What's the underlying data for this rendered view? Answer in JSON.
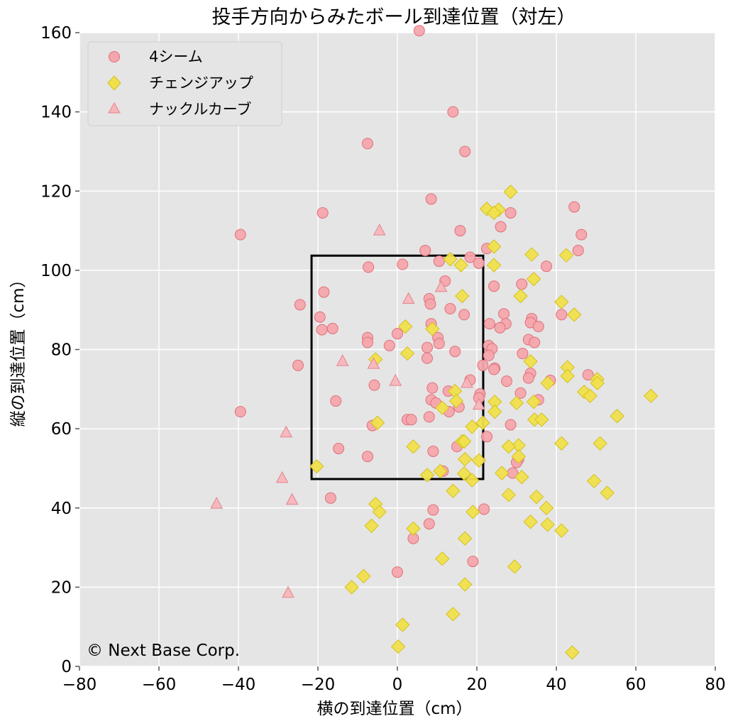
{
  "chart_data": {
    "type": "scatter",
    "title": "投手方向からみたボール到達位置（対左）",
    "xlabel": "横の到達位置（cm）",
    "ylabel": "縦の到達位置（cm）",
    "xlim": [
      -80,
      80
    ],
    "ylim": [
      0,
      160
    ],
    "xticks": [
      -80,
      -60,
      -40,
      -20,
      0,
      20,
      40,
      60,
      80
    ],
    "yticks": [
      0,
      20,
      40,
      60,
      80,
      100,
      120,
      140,
      160
    ],
    "xtick_labels": [
      "−80",
      "−60",
      "−40",
      "−20",
      "0",
      "20",
      "40",
      "60",
      "80"
    ],
    "ytick_labels": [
      "0",
      "20",
      "40",
      "60",
      "80",
      "100",
      "120",
      "140",
      "160"
    ],
    "grid": true,
    "background": "#e5e5e5",
    "legend_position": "top-left",
    "strike_zone": {
      "x": [
        -21.6,
        21.6
      ],
      "y": [
        47.3,
        103.7
      ],
      "color": "#000000"
    },
    "annotation": "© Next Base Corp.",
    "series": [
      {
        "name": "4シーム",
        "marker": "circle",
        "color": "#f4a6ac",
        "edge": "#e0707c",
        "points": [
          [
            5.5,
            160.5
          ],
          [
            14,
            140
          ],
          [
            -7.5,
            132
          ],
          [
            17,
            130
          ],
          [
            8.5,
            118
          ],
          [
            44.5,
            116
          ],
          [
            28.5,
            114.5
          ],
          [
            -18.8,
            114.5
          ],
          [
            26,
            111
          ],
          [
            15.8,
            110
          ],
          [
            -39.5,
            109
          ],
          [
            46.3,
            109
          ],
          [
            22.5,
            105.5
          ],
          [
            7,
            105
          ],
          [
            45.5,
            105
          ],
          [
            18.3,
            103.3
          ],
          [
            10.5,
            102.3
          ],
          [
            20.5,
            101.8
          ],
          [
            1.3,
            101.5
          ],
          [
            37.5,
            101
          ],
          [
            -7.3,
            100.8
          ],
          [
            12,
            97.3
          ],
          [
            31.3,
            96.5
          ],
          [
            24.3,
            96
          ],
          [
            -18.5,
            94.5
          ],
          [
            8,
            92.8
          ],
          [
            -24.5,
            91.3
          ],
          [
            8.3,
            91.5
          ],
          [
            13.3,
            90.3
          ],
          [
            16.8,
            88.8
          ],
          [
            26.8,
            89
          ],
          [
            -19.5,
            88.2
          ],
          [
            41.3,
            88.8
          ],
          [
            33.8,
            87.8
          ],
          [
            23.2,
            86.5
          ],
          [
            8.5,
            86.5
          ],
          [
            27.3,
            86.5
          ],
          [
            33.5,
            86.8
          ],
          [
            25.8,
            85.5
          ],
          [
            35.5,
            85.8
          ],
          [
            -19,
            85
          ],
          [
            -16.3,
            85.3
          ],
          [
            0,
            84
          ],
          [
            10.2,
            83
          ],
          [
            -7.5,
            83
          ],
          [
            33,
            82.5
          ],
          [
            -7.5,
            81.8
          ],
          [
            34.5,
            81.8
          ],
          [
            10.5,
            81.5
          ],
          [
            -2,
            81
          ],
          [
            23,
            81
          ],
          [
            7.5,
            80.5
          ],
          [
            23.8,
            80.2
          ],
          [
            14.5,
            79.5
          ],
          [
            31.5,
            79
          ],
          [
            23,
            78.5
          ],
          [
            7.5,
            77.8
          ],
          [
            -25,
            76
          ],
          [
            21.5,
            76
          ],
          [
            24.5,
            75.3
          ],
          [
            24.3,
            75
          ],
          [
            33.5,
            74
          ],
          [
            48,
            73.6
          ],
          [
            33,
            72.8
          ],
          [
            18.3,
            72.3
          ],
          [
            38.5,
            72.2
          ],
          [
            27.5,
            72
          ],
          [
            -5.8,
            71
          ],
          [
            8.8,
            70.3
          ],
          [
            12.8,
            69.5
          ],
          [
            20.8,
            68.8
          ],
          [
            31,
            69
          ],
          [
            20.5,
            67.8
          ],
          [
            8.5,
            67.3
          ],
          [
            35.5,
            67.3
          ],
          [
            -15.5,
            67
          ],
          [
            9.7,
            66.5
          ],
          [
            15.5,
            65.5
          ],
          [
            13,
            64.3
          ],
          [
            -39.5,
            64.3
          ],
          [
            8,
            63
          ],
          [
            2.5,
            62.3
          ],
          [
            3.5,
            62.3
          ],
          [
            -6.3,
            60.8
          ],
          [
            28.5,
            61
          ],
          [
            22.5,
            58
          ],
          [
            15,
            55.5
          ],
          [
            -14.8,
            55
          ],
          [
            9,
            54.3
          ],
          [
            30.5,
            52.3
          ],
          [
            -7.5,
            53
          ],
          [
            30,
            51.5
          ],
          [
            29,
            48.8
          ],
          [
            11.5,
            49.3
          ],
          [
            21.8,
            39.7
          ],
          [
            9,
            39.5
          ],
          [
            -16.8,
            42.5
          ],
          [
            8,
            36
          ],
          [
            4,
            32.3
          ],
          [
            19,
            26.5
          ],
          [
            0,
            23.8
          ]
        ]
      },
      {
        "name": "チェンジアップ",
        "marker": "diamond",
        "color": "#f0e04c",
        "edge": "#d4c020",
        "points": [
          [
            28.5,
            119.8
          ],
          [
            22.5,
            115.5
          ],
          [
            25.5,
            115.3
          ],
          [
            24.3,
            114.5
          ],
          [
            24.3,
            106
          ],
          [
            33.8,
            104
          ],
          [
            42.5,
            103.8
          ],
          [
            13.3,
            102.8
          ],
          [
            16,
            101.3
          ],
          [
            24.3,
            101.3
          ],
          [
            34.3,
            97.8
          ],
          [
            16.3,
            93.5
          ],
          [
            31,
            93.5
          ],
          [
            41.3,
            92
          ],
          [
            44.5,
            88.8
          ],
          [
            2,
            85.8
          ],
          [
            8.8,
            85.2
          ],
          [
            2.5,
            79
          ],
          [
            -5.5,
            77.5
          ],
          [
            33.5,
            77
          ],
          [
            42.8,
            75.5
          ],
          [
            42.8,
            73.3
          ],
          [
            50.3,
            72.5
          ],
          [
            50.3,
            71.5
          ],
          [
            37.8,
            71.5
          ],
          [
            14.5,
            69.5
          ],
          [
            47,
            69.3
          ],
          [
            48.5,
            68.3
          ],
          [
            63.8,
            68.3
          ],
          [
            14.8,
            67
          ],
          [
            24.5,
            66.8
          ],
          [
            30,
            66.5
          ],
          [
            34.3,
            66.8
          ],
          [
            11.3,
            65.3
          ],
          [
            24.5,
            64.3
          ],
          [
            55.3,
            63.2
          ],
          [
            34.5,
            62.3
          ],
          [
            36.3,
            62.3
          ],
          [
            -5,
            61.5
          ],
          [
            21.5,
            61.5
          ],
          [
            18.8,
            60.5
          ],
          [
            16.3,
            56.8
          ],
          [
            30.5,
            55.8
          ],
          [
            16.8,
            56.8
          ],
          [
            4,
            55.5
          ],
          [
            28,
            55.5
          ],
          [
            41.3,
            56.3
          ],
          [
            51,
            56.3
          ],
          [
            30.5,
            53
          ],
          [
            17,
            52.3
          ],
          [
            20.5,
            52
          ],
          [
            -20.3,
            50.5
          ],
          [
            10.8,
            49.3
          ],
          [
            16.8,
            48.7
          ],
          [
            7.5,
            48.3
          ],
          [
            26.3,
            48.8
          ],
          [
            31.3,
            47.8
          ],
          [
            18.8,
            47
          ],
          [
            49.5,
            46.8
          ],
          [
            52.8,
            43.8
          ],
          [
            14,
            44.3
          ],
          [
            28,
            43.3
          ],
          [
            35,
            42.8
          ],
          [
            -5.5,
            41
          ],
          [
            -4.5,
            39
          ],
          [
            19,
            39
          ],
          [
            37.5,
            40
          ],
          [
            -6.5,
            35.5
          ],
          [
            4,
            34.8
          ],
          [
            33.5,
            36.5
          ],
          [
            37.8,
            35.8
          ],
          [
            41.3,
            34.3
          ],
          [
            17,
            32.3
          ],
          [
            11.3,
            27.2
          ],
          [
            29.5,
            25.2
          ],
          [
            -8.5,
            22.8
          ],
          [
            -11.5,
            20
          ],
          [
            17,
            20.7
          ],
          [
            14,
            13.2
          ],
          [
            1.3,
            10.5
          ],
          [
            0.2,
            5
          ],
          [
            44,
            3.5
          ]
        ]
      },
      {
        "name": "ナックルカーブ",
        "marker": "triangle",
        "color": "#f7b6bc",
        "edge": "#e4848e",
        "points": [
          [
            -4.5,
            110
          ],
          [
            11,
            95.7
          ],
          [
            2.8,
            92.7
          ],
          [
            -13.8,
            77
          ],
          [
            -6,
            76.3
          ],
          [
            -0.5,
            72
          ],
          [
            17.5,
            71.5
          ],
          [
            20.5,
            66
          ],
          [
            -28,
            59
          ],
          [
            -29,
            47.5
          ],
          [
            -26.5,
            42
          ],
          [
            -45.5,
            41
          ],
          [
            -27.5,
            18.5
          ]
        ]
      }
    ]
  }
}
